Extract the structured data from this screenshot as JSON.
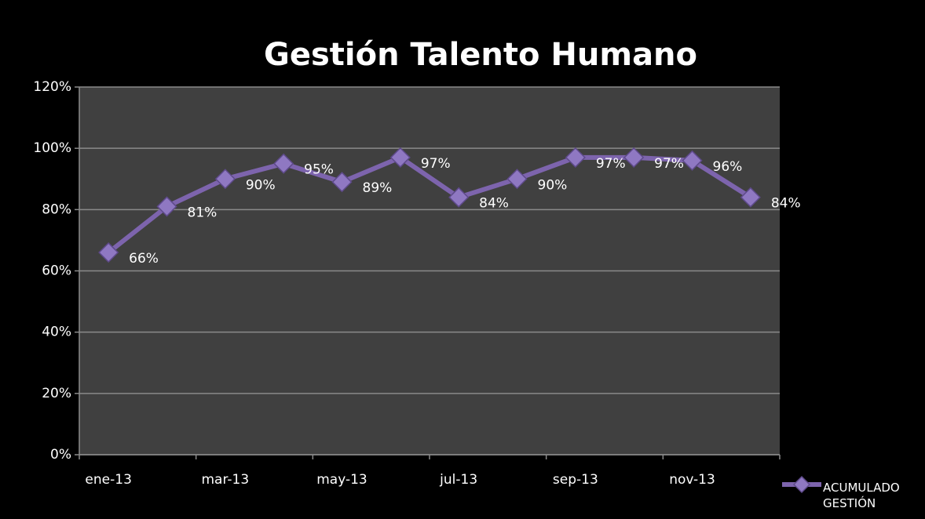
{
  "chart_data": {
    "type": "line",
    "title": "Gestión Talento Humano",
    "categories": [
      "ene-13",
      null,
      "mar-13",
      null,
      "may-13",
      null,
      "jul-13",
      null,
      "sep-13",
      null,
      "nov-13",
      null
    ],
    "series": [
      {
        "name": "ACUMULADO GESTIÓN",
        "color": "#7d64ad",
        "values": [
          66,
          81,
          90,
          95,
          89,
          97,
          84,
          90,
          97,
          97,
          96,
          84
        ],
        "value_labels": [
          "66%",
          "81%",
          "90%",
          "95%",
          "89%",
          "97%",
          "84%",
          "90%",
          "97%",
          "97%",
          "96%",
          "84%"
        ]
      }
    ],
    "ylim": [
      0,
      120
    ],
    "yticks": [
      {
        "value": 0,
        "label": "0%"
      },
      {
        "value": 20,
        "label": "20%"
      },
      {
        "value": 40,
        "label": "40%"
      },
      {
        "value": 60,
        "label": "60%"
      },
      {
        "value": 80,
        "label": "80%"
      },
      {
        "value": 100,
        "label": "100%"
      },
      {
        "value": 120,
        "label": "120%"
      }
    ],
    "grid": true
  }
}
